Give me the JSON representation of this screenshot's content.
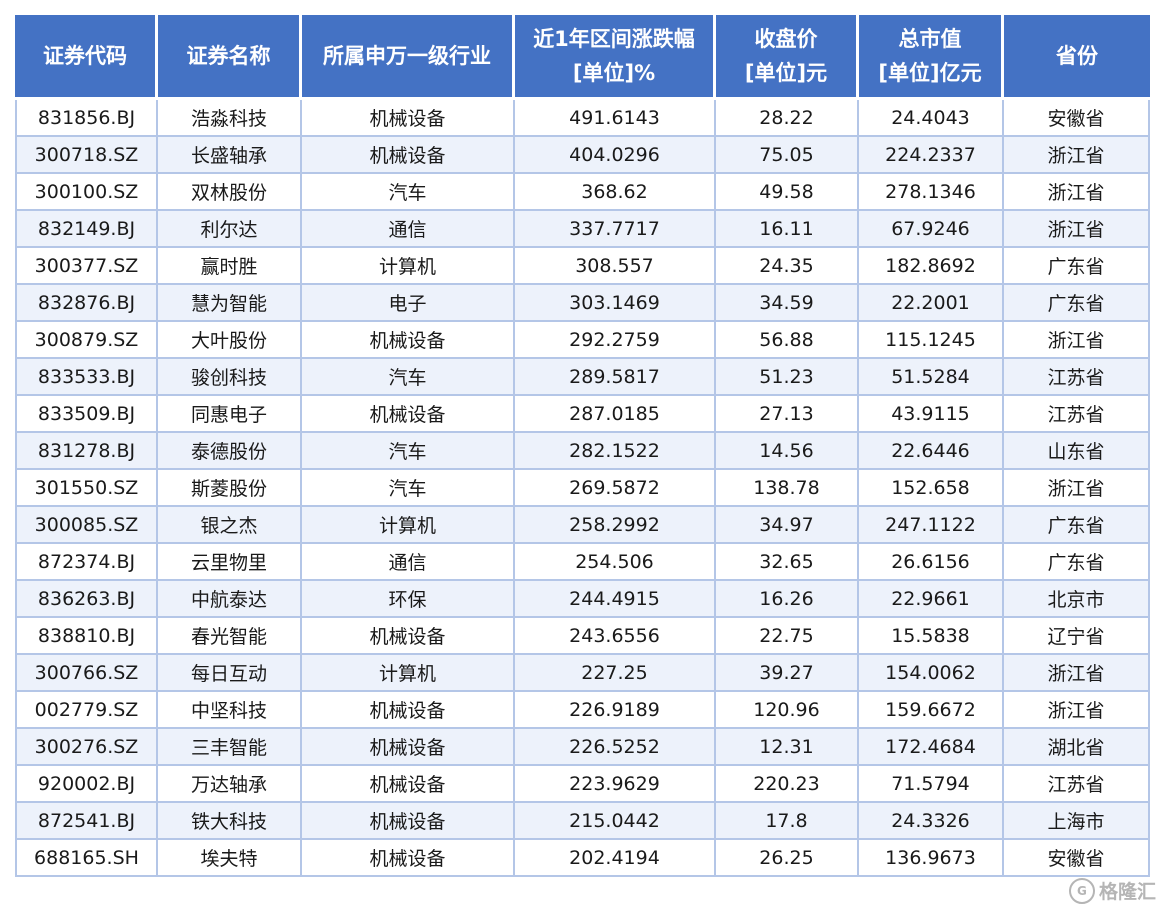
{
  "headers": [
    {
      "line1": "证券代码",
      "line2": ""
    },
    {
      "line1": "证券名称",
      "line2": ""
    },
    {
      "line1": "所属申万一级行业",
      "line2": ""
    },
    {
      "line1": "近1年区间涨跌幅",
      "line2": "[单位]%"
    },
    {
      "line1": "收盘价",
      "line2": "[单位]元"
    },
    {
      "line1": "总市值",
      "line2": "[单位]亿元"
    },
    {
      "line1": "省份",
      "line2": ""
    }
  ],
  "rows": [
    [
      "831856.BJ",
      "浩淼科技",
      "机械设备",
      "491.6143",
      "28.22",
      "24.4043",
      "安徽省"
    ],
    [
      "300718.SZ",
      "长盛轴承",
      "机械设备",
      "404.0296",
      "75.05",
      "224.2337",
      "浙江省"
    ],
    [
      "300100.SZ",
      "双林股份",
      "汽车",
      "368.62",
      "49.58",
      "278.1346",
      "浙江省"
    ],
    [
      "832149.BJ",
      "利尔达",
      "通信",
      "337.7717",
      "16.11",
      "67.9246",
      "浙江省"
    ],
    [
      "300377.SZ",
      "赢时胜",
      "计算机",
      "308.557",
      "24.35",
      "182.8692",
      "广东省"
    ],
    [
      "832876.BJ",
      "慧为智能",
      "电子",
      "303.1469",
      "34.59",
      "22.2001",
      "广东省"
    ],
    [
      "300879.SZ",
      "大叶股份",
      "机械设备",
      "292.2759",
      "56.88",
      "115.1245",
      "浙江省"
    ],
    [
      "833533.BJ",
      "骏创科技",
      "汽车",
      "289.5817",
      "51.23",
      "51.5284",
      "江苏省"
    ],
    [
      "833509.BJ",
      "同惠电子",
      "机械设备",
      "287.0185",
      "27.13",
      "43.9115",
      "江苏省"
    ],
    [
      "831278.BJ",
      "泰德股份",
      "汽车",
      "282.1522",
      "14.56",
      "22.6446",
      "山东省"
    ],
    [
      "301550.SZ",
      "斯菱股份",
      "汽车",
      "269.5872",
      "138.78",
      "152.658",
      "浙江省"
    ],
    [
      "300085.SZ",
      "银之杰",
      "计算机",
      "258.2992",
      "34.97",
      "247.1122",
      "广东省"
    ],
    [
      "872374.BJ",
      "云里物里",
      "通信",
      "254.506",
      "32.65",
      "26.6156",
      "广东省"
    ],
    [
      "836263.BJ",
      "中航泰达",
      "环保",
      "244.4915",
      "16.26",
      "22.9661",
      "北京市"
    ],
    [
      "838810.BJ",
      "春光智能",
      "机械设备",
      "243.6556",
      "22.75",
      "15.5838",
      "辽宁省"
    ],
    [
      "300766.SZ",
      "每日互动",
      "计算机",
      "227.25",
      "39.27",
      "154.0062",
      "浙江省"
    ],
    [
      "002779.SZ",
      "中坚科技",
      "机械设备",
      "226.9189",
      "120.96",
      "159.6672",
      "浙江省"
    ],
    [
      "300276.SZ",
      "三丰智能",
      "机械设备",
      "226.5252",
      "12.31",
      "172.4684",
      "湖北省"
    ],
    [
      "920002.BJ",
      "万达轴承",
      "机械设备",
      "223.9629",
      "220.23",
      "71.5794",
      "江苏省"
    ],
    [
      "872541.BJ",
      "铁大科技",
      "机械设备",
      "215.0442",
      "17.8",
      "24.3326",
      "上海市"
    ],
    [
      "688165.SH",
      "埃夫特",
      "机械设备",
      "202.4194",
      "26.25",
      "136.9673",
      "安徽省"
    ]
  ],
  "watermark": {
    "text": "格隆汇"
  },
  "colors": {
    "header_bg": "#4472c4",
    "header_text": "#ffffff",
    "border": "#b4c6e7",
    "stripe": "#edf2fb"
  }
}
